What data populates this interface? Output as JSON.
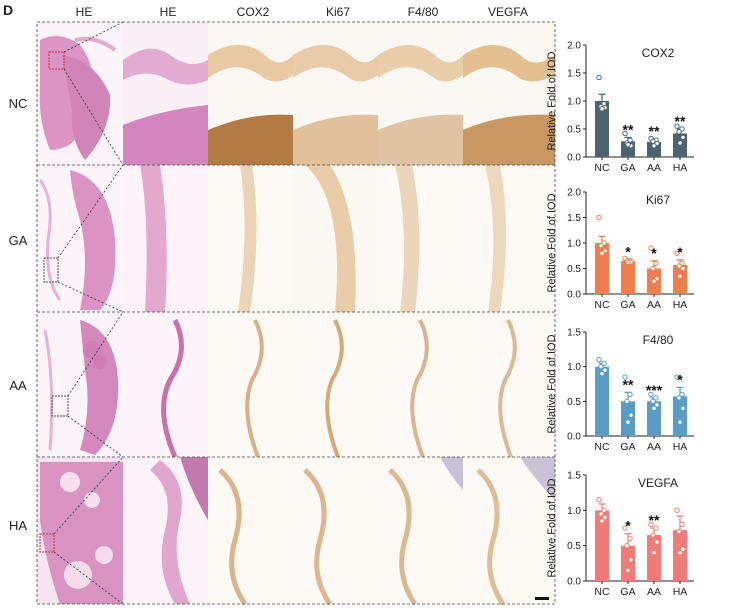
{
  "panel_letter": "D",
  "columns": [
    "HE",
    "HE",
    "COX2",
    "Ki67",
    "F4/80",
    "VEGFA"
  ],
  "rows": [
    "NC",
    "GA",
    "AA",
    "HA"
  ],
  "colors": {
    "he_tissue": "#d98fbf",
    "he_light": "#f3dcea",
    "ihc_tissue": "#e9c9a3",
    "ihc_dark": "#b77b45",
    "cox2": "#4c6470",
    "ki67": "#ee7d4f",
    "f480": "#5a9cc6",
    "vegfa": "#f07c78"
  },
  "chart_data": [
    {
      "type": "bar",
      "title": "COX2",
      "ylabel": "Relative Fold of IOD",
      "categories": [
        "NC",
        "GA",
        "AA",
        "HA"
      ],
      "values": [
        1.0,
        0.28,
        0.27,
        0.42
      ],
      "errors": [
        0.12,
        0.07,
        0.05,
        0.08
      ],
      "points": [
        [
          1.42,
          0.95,
          0.9,
          0.88,
          0.86
        ],
        [
          0.42,
          0.3,
          0.25,
          0.2,
          0.22
        ],
        [
          0.33,
          0.3,
          0.28,
          0.24,
          0.2
        ],
        [
          0.55,
          0.5,
          0.45,
          0.35,
          0.25
        ]
      ],
      "significance": [
        "",
        "**",
        "**",
        "**"
      ],
      "yticks": [
        "0.0",
        "0.5",
        "1.0",
        "1.5",
        "2.0"
      ],
      "ylim": [
        0,
        2.0
      ]
    },
    {
      "type": "bar",
      "title": "Ki67",
      "ylabel": "Relative Fold of IOD",
      "categories": [
        "NC",
        "GA",
        "AA",
        "HA"
      ],
      "values": [
        1.0,
        0.65,
        0.5,
        0.57
      ],
      "errors": [
        0.13,
        0.03,
        0.15,
        0.1
      ],
      "points": [
        [
          1.5,
          1.0,
          0.95,
          0.85,
          0.8
        ],
        [
          0.7,
          0.66,
          0.65,
          0.63,
          0.62
        ],
        [
          0.9,
          0.6,
          0.5,
          0.3,
          0.25
        ],
        [
          0.8,
          0.6,
          0.55,
          0.5,
          0.35
        ]
      ],
      "significance": [
        "",
        "*",
        "*",
        "*"
      ],
      "yticks": [
        "0.0",
        "0.5",
        "1.0",
        "1.5",
        "2.0"
      ],
      "ylim": [
        0,
        2.0
      ]
    },
    {
      "type": "bar",
      "title": "F4/80",
      "ylabel": "Relative Fold of IOD",
      "categories": [
        "NC",
        "GA",
        "AA",
        "HA"
      ],
      "values": [
        1.0,
        0.5,
        0.5,
        0.57
      ],
      "errors": [
        0.05,
        0.13,
        0.05,
        0.13
      ],
      "points": [
        [
          1.1,
          1.05,
          1.0,
          0.95,
          0.9
        ],
        [
          0.85,
          0.6,
          0.5,
          0.3,
          0.2
        ],
        [
          0.6,
          0.55,
          0.5,
          0.45,
          0.4
        ],
        [
          0.85,
          0.6,
          0.55,
          0.4,
          0.2
        ]
      ],
      "significance": [
        "",
        "**",
        "***",
        "*"
      ],
      "yticks": [
        "0.0",
        "0.5",
        "1.0",
        "1.5"
      ],
      "ylim": [
        0,
        1.5
      ]
    },
    {
      "type": "bar",
      "title": "VEGFA",
      "ylabel": "Relative Fold of IOD",
      "categories": [
        "NC",
        "GA",
        "AA",
        "HA"
      ],
      "values": [
        1.0,
        0.5,
        0.65,
        0.72
      ],
      "errors": [
        0.09,
        0.17,
        0.1,
        0.2
      ],
      "points": [
        [
          1.15,
          1.0,
          0.95,
          0.9,
          0.85
        ],
        [
          0.75,
          0.6,
          0.5,
          0.3,
          0.15
        ],
        [
          0.8,
          0.75,
          0.65,
          0.55,
          0.4
        ],
        [
          1.0,
          0.8,
          0.7,
          0.45,
          0.4
        ]
      ],
      "significance": [
        "",
        "*",
        "**",
        ""
      ],
      "yticks": [
        "0.0",
        "0.5",
        "1.0",
        "1.5"
      ],
      "ylim": [
        0,
        1.5
      ]
    }
  ]
}
